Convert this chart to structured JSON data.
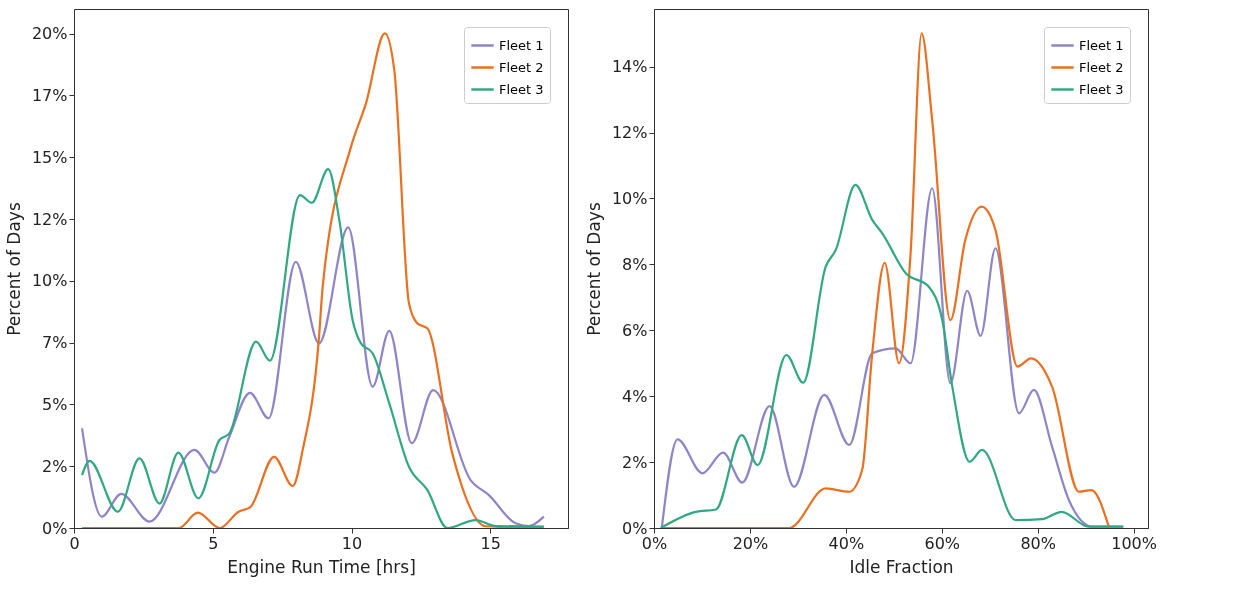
{
  "chart_data": [
    {
      "type": "line",
      "xlabel": "Engine Run Time [hrs]",
      "ylabel": "Percent of Days",
      "legend": "top right",
      "grid": false,
      "xlim": [
        0,
        17.8
      ],
      "ylim": [
        0,
        21
      ],
      "xticks": [
        0,
        5,
        10,
        15
      ],
      "yticks": [
        {
          "value": 0,
          "label": "0%"
        },
        {
          "value": 2.5,
          "label": "2%"
        },
        {
          "value": 5,
          "label": "5%"
        },
        {
          "value": 7.5,
          "label": "7%"
        },
        {
          "value": 10,
          "label": "10%"
        },
        {
          "value": 12.5,
          "label": "12%"
        },
        {
          "value": 15,
          "label": "15%"
        },
        {
          "value": 17.5,
          "label": "17%"
        },
        {
          "value": 20,
          "label": "20%"
        }
      ],
      "series": [
        {
          "name": "Fleet 1",
          "color": "#8e85c9",
          "x": [
            0.29,
            1.0,
            1.7,
            2.72,
            4.34,
            5.06,
            5.6,
            6.34,
            7.01,
            7.99,
            8.83,
            9.88,
            10.76,
            11.36,
            12.17,
            12.94,
            14.29,
            14.95,
            15.91,
            16.39,
            16.93
          ],
          "values": [
            4.03,
            0.46,
            1.38,
            0.26,
            3.16,
            2.24,
            3.7,
            5.47,
            4.44,
            10.77,
            7.47,
            12.16,
            5.72,
            7.98,
            3.43,
            5.58,
            1.94,
            1.33,
            0.19,
            0.08,
            0.46
          ]
        },
        {
          "name": "Fleet 2",
          "color": "#ea7021",
          "x": [
            0.29,
            3.24,
            3.78,
            4.46,
            5.25,
            5.93,
            6.35,
            7.21,
            7.88,
            8.24,
            8.83,
            8.96,
            9.98,
            10.52,
            11.2,
            11.54,
            12.07,
            12.37,
            12.73,
            13.63,
            14.83,
            16.93
          ],
          "values": [
            0,
            0,
            0,
            0.62,
            0,
            0.66,
            0.84,
            2.88,
            1.7,
            3.16,
            7.74,
            9.76,
            15.42,
            17.18,
            20.01,
            18.53,
            9.09,
            8.28,
            8.08,
            3.02,
            0.07,
            0
          ]
        },
        {
          "name": "Fleet 3",
          "color": "#30a882",
          "x": [
            0.29,
            0.56,
            1.58,
            2.36,
            3.08,
            3.76,
            4.48,
            5.24,
            5.6,
            6.56,
            7.06,
            8.14,
            8.57,
            9.16,
            9.56,
            10.04,
            10.34,
            10.76,
            11.36,
            12.07,
            12.73,
            13.45,
            14.47,
            15.19,
            16.93
          ],
          "values": [
            2.14,
            2.72,
            0.66,
            2.82,
            0.99,
            3.05,
            1.2,
            3.56,
            3.83,
            7.54,
            6.77,
            13.47,
            13.16,
            14.52,
            12.46,
            8.41,
            7.47,
            7.07,
            5.04,
            2.48,
            1.54,
            0,
            0.32,
            0.08,
            0.06
          ]
        }
      ]
    },
    {
      "type": "line",
      "xlabel": "Idle Fraction",
      "ylabel": "Percent of Days",
      "legend": "top right",
      "grid": false,
      "xlim": [
        0,
        103
      ],
      "ylim": [
        0,
        15.75
      ],
      "xticks": [
        {
          "value": 0,
          "label": "0%"
        },
        {
          "value": 20,
          "label": "20%"
        },
        {
          "value": 40,
          "label": "40%"
        },
        {
          "value": 60,
          "label": "60%"
        },
        {
          "value": 80,
          "label": "80%"
        },
        {
          "value": 100,
          "label": "100%"
        }
      ],
      "yticks": [
        {
          "value": 0,
          "label": "0%"
        },
        {
          "value": 2,
          "label": "2%"
        },
        {
          "value": 4,
          "label": "4%"
        },
        {
          "value": 6,
          "label": "6%"
        },
        {
          "value": 8,
          "label": "8%"
        },
        {
          "value": 10,
          "label": "10%"
        },
        {
          "value": 12,
          "label": "12%"
        },
        {
          "value": 14,
          "label": "14%"
        }
      ],
      "series": [
        {
          "name": "Fleet 1",
          "color": "#8e85c9",
          "x": [
            1.63,
            4.9,
            10.1,
            14.4,
            18.4,
            24.1,
            29.2,
            35.5,
            40.7,
            45.5,
            50.4,
            53.5,
            58.0,
            61.8,
            65.3,
            68.1,
            71.2,
            76.1,
            79.2,
            83.0,
            86.5,
            91.4,
            97.6
          ],
          "values": [
            0,
            2.69,
            1.66,
            2.29,
            1.38,
            3.7,
            1.25,
            4.04,
            2.52,
            5.3,
            5.45,
            5.0,
            10.31,
            4.39,
            7.2,
            5.83,
            8.49,
            3.48,
            4.19,
            2.47,
            0.85,
            0.04,
            0.04
          ]
        },
        {
          "name": "Fleet 2",
          "color": "#ea7021",
          "x": [
            1.4,
            28.2,
            35.8,
            40.7,
            43.4,
            45.5,
            48.1,
            51.1,
            53.5,
            55.8,
            58.0,
            61.8,
            64.9,
            68.3,
            71.2,
            75.8,
            78.6,
            83.0,
            88.6,
            91.2,
            94.8
          ],
          "values": [
            0,
            0,
            1.2,
            1.1,
            1.76,
            5.3,
            8.05,
            5.0,
            8.34,
            15.01,
            12.38,
            6.31,
            8.74,
            9.75,
            9.04,
            4.9,
            5.15,
            4.29,
            1.1,
            1.15,
            0.05
          ]
        },
        {
          "name": "Fleet 3",
          "color": "#30a882",
          "x": [
            1.4,
            8.7,
            12.9,
            18.3,
            21.6,
            27.6,
            31.1,
            35.8,
            37.9,
            42.0,
            45.5,
            47.6,
            52.5,
            57.3,
            60.1,
            62.2,
            65.8,
            68.4,
            75.4,
            80.9,
            85.0,
            90.6,
            97.9
          ],
          "values": [
            0,
            0.49,
            0.56,
            2.82,
            1.91,
            5.25,
            4.41,
            7.93,
            8.44,
            10.41,
            9.35,
            8.94,
            7.73,
            7.32,
            6.31,
            4.29,
            2.01,
            2.37,
            0.24,
            0.27,
            0.49,
            0.04,
            0.04
          ]
        }
      ]
    }
  ]
}
